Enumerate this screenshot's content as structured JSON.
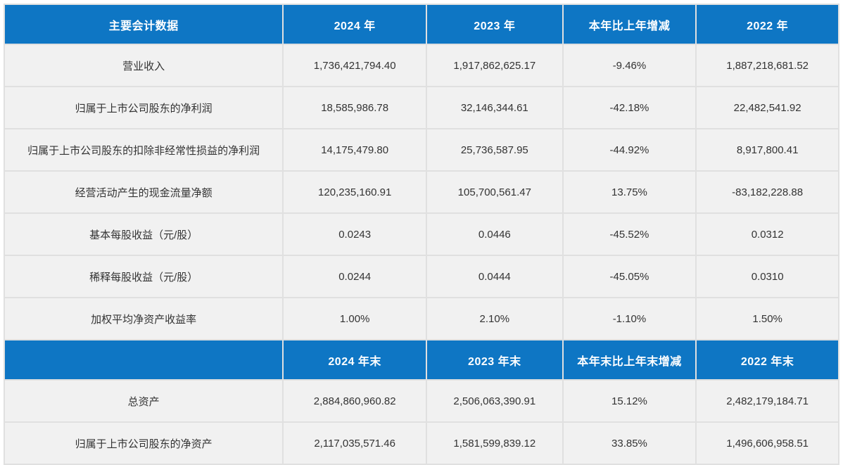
{
  "colors": {
    "header_bg": "#0e76c4",
    "header_text": "#ffffff",
    "row_bg": "#f1f1f1",
    "cell_text": "#333333",
    "separator": "#e0e0e0"
  },
  "table1": {
    "headers": [
      "主要会计数据",
      "2024 年",
      "2023 年",
      "本年比上年增减",
      "2022 年"
    ],
    "rows": [
      [
        "营业收入",
        "1,736,421,794.40",
        "1,917,862,625.17",
        "-9.46%",
        "1,887,218,681.52"
      ],
      [
        "归属于上市公司股东的净利润",
        "18,585,986.78",
        "32,146,344.61",
        "-42.18%",
        "22,482,541.92"
      ],
      [
        "归属于上市公司股东的扣除非经常性损益的净利润",
        "14,175,479.80",
        "25,736,587.95",
        "-44.92%",
        "8,917,800.41"
      ],
      [
        "经营活动产生的现金流量净额",
        "120,235,160.91",
        "105,700,561.47",
        "13.75%",
        "-83,182,228.88"
      ],
      [
        "基本每股收益（元/股）",
        "0.0243",
        "0.0446",
        "-45.52%",
        "0.0312"
      ],
      [
        "稀释每股收益（元/股）",
        "0.0244",
        "0.0444",
        "-45.05%",
        "0.0310"
      ],
      [
        "加权平均净资产收益率",
        "1.00%",
        "2.10%",
        "-1.10%",
        "1.50%"
      ]
    ]
  },
  "table2": {
    "headers": [
      "",
      "2024 年末",
      "2023 年末",
      "本年末比上年末增减",
      "2022 年末"
    ],
    "rows": [
      [
        "总资产",
        "2,884,860,960.82",
        "2,506,063,390.91",
        "15.12%",
        "2,482,179,184.71"
      ],
      [
        "归属于上市公司股东的净资产",
        "2,117,035,571.46",
        "1,581,599,839.12",
        "33.85%",
        "1,496,606,958.51"
      ]
    ]
  }
}
